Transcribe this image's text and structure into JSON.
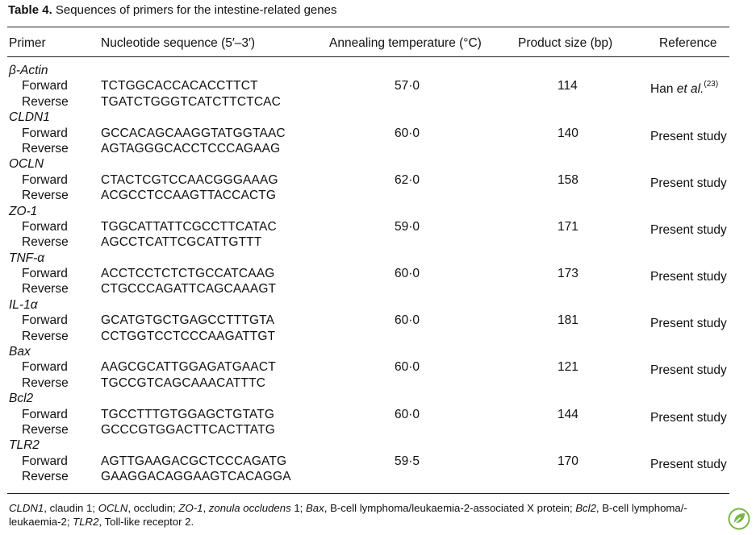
{
  "caption": {
    "number": "Table 4.",
    "text": "Sequences of primers for the intestine-related genes"
  },
  "headers": {
    "primer": "Primer",
    "sequence": "Nucleotide sequence (5′–3′)",
    "temperature": "Annealing temperature (°C)",
    "product_size": "Product size (bp)",
    "reference": "Reference"
  },
  "genes": [
    {
      "name": "β-Actin",
      "forward": "TCTGGCACCACACCTTCT",
      "reverse": "TGATCTGGGTCATCTTCTCAC",
      "temperature": "57·0",
      "size": "114",
      "ref_text": "Han ",
      "ref_italic": "et al.",
      "ref_sup": "(23)"
    },
    {
      "name": "CLDN1",
      "forward": "GCCACAGCAAGGTATGGTAAC",
      "reverse": "AGTAGGGCACCTCCCAGAAG",
      "temperature": "60·0",
      "size": "140",
      "ref_text": "Present study",
      "ref_italic": "",
      "ref_sup": ""
    },
    {
      "name": "OCLN",
      "forward": "CTACTCGTCCAACGGGAAAG",
      "reverse": "ACGCCTCCAAGTTACCACTG",
      "temperature": "62·0",
      "size": "158",
      "ref_text": "Present study",
      "ref_italic": "",
      "ref_sup": ""
    },
    {
      "name": "ZO-1",
      "forward": "TGGCATTATTCGCCTTCATAC",
      "reverse": "AGCCTCATTCGCATTGTTT",
      "temperature": "59·0",
      "size": "171",
      "ref_text": "Present study",
      "ref_italic": "",
      "ref_sup": ""
    },
    {
      "name": "TNF-α",
      "forward": "ACCTCCTCTCTGCCATCAAG",
      "reverse": "CTGCCCAGATTCAGCAAAGT",
      "temperature": "60·0",
      "size": "173",
      "ref_text": "Present study",
      "ref_italic": "",
      "ref_sup": ""
    },
    {
      "name": "IL-1α",
      "forward": "GCATGTGCTGAGCCTTTGTA",
      "reverse": "CCTGGTCCTCCCAAGATTGT",
      "temperature": "60·0",
      "size": "181",
      "ref_text": "Present study",
      "ref_italic": "",
      "ref_sup": ""
    },
    {
      "name": "Bax",
      "forward": "AAGCGCATTGGAGATGAACT",
      "reverse": "TGCCGTCAGCAAACATTTC",
      "temperature": "60·0",
      "size": "121",
      "ref_text": "Present study",
      "ref_italic": "",
      "ref_sup": ""
    },
    {
      "name": "Bcl2",
      "forward": "TGCCTTTGTGGAGCTGTATG",
      "reverse": "GCCCGTGGACTTCACTTATG",
      "temperature": "60·0",
      "size": "144",
      "ref_text": "Present study",
      "ref_italic": "",
      "ref_sup": ""
    },
    {
      "name": "TLR2",
      "forward": "AGTTGAAGACGCTCCCAGATG",
      "reverse": "GAAGGACAGGAAGTCACAGGA",
      "temperature": "59·5",
      "size": "170",
      "ref_text": "Present study",
      "ref_italic": "",
      "ref_sup": ""
    }
  ],
  "labels": {
    "forward": "Forward",
    "reverse": "Reverse"
  },
  "footnote": {
    "t1": "CLDN1",
    "t2": ", claudin 1; ",
    "t3": "OCLN",
    "t4": ", occludin; ",
    "t5": "ZO-1",
    "t6": ", ",
    "t7": "zonula occludens",
    "t8": " 1; ",
    "t9": "Bax",
    "t10": ", B-cell lymphoma/leukaemia-2-associated X protein; ",
    "t11": "Bcl2",
    "t12": ", B-cell lymphoma/-",
    "t13": "leukaemia-2; ",
    "t14": "TLR2",
    "t15": ", Toll-like receptor 2."
  },
  "icons": {
    "corner_logo": "green-leaf-badge-icon",
    "logo_color": "#7ab648"
  }
}
